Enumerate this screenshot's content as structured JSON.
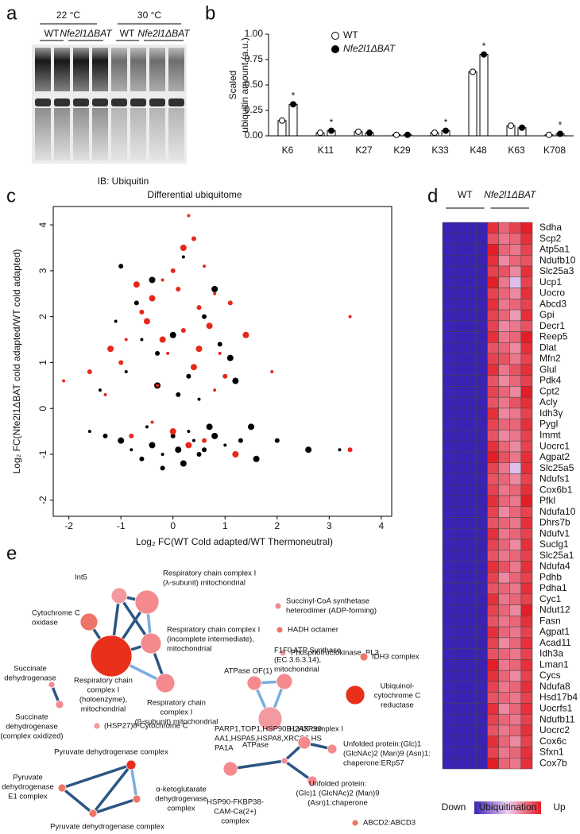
{
  "panel_labels": [
    "a",
    "b",
    "c",
    "d",
    "e"
  ],
  "blot": {
    "temperatures": [
      "22 °C",
      "30 °C"
    ],
    "groups": [
      "WT",
      "Nfe2l1ΔBAT",
      "WT",
      "Nfe2l1ΔBAT"
    ],
    "caption": "IB: Ubiquitin"
  },
  "chart_data": [
    {
      "type": "bar",
      "ylabel": [
        "Scaled",
        "ubiquitin amount (a.u.)"
      ],
      "categories": [
        "K6",
        "K11",
        "K27",
        "K29",
        "K33",
        "K48",
        "K63",
        "K708"
      ],
      "series": [
        {
          "name": "WT",
          "color": "#ffffff",
          "values": [
            0.15,
            0.03,
            0.04,
            0.01,
            0.03,
            0.63,
            0.1,
            0.01
          ]
        },
        {
          "name": "Nfe2l1ΔBAT",
          "color": "#000000",
          "values": [
            0.31,
            0.05,
            0.03,
            0.01,
            0.05,
            0.8,
            0.08,
            0.02
          ]
        }
      ],
      "significance": [
        "*",
        "*",
        null,
        null,
        "*",
        "*",
        null,
        "*"
      ],
      "ylim": [
        0,
        1.0
      ],
      "yticks": [
        {
          "value": 0,
          "label": "0.00"
        },
        {
          "value": 0.25,
          "label": "0.25"
        },
        {
          "value": 0.5,
          "label": "0.50"
        },
        {
          "value": 0.75,
          "label": "0.75"
        },
        {
          "value": 1,
          "label": "1.00"
        }
      ]
    },
    {
      "type": "scatter",
      "title": "Differential ubiquitome",
      "xlabel": "Log₂ FC(WT Cold adapted/WT Thermoneutral)",
      "ylabel": "Log₂ FC(Nfe2l1ΔBAT cold adapted/WT cold adapted)",
      "xlim": [
        -2.3,
        4.2
      ],
      "ylim": [
        -2.35,
        4.4
      ],
      "xticks": [
        -2,
        -1,
        0,
        1,
        2,
        3,
        4
      ],
      "yticks": [
        -2,
        -1,
        0,
        1,
        2,
        3,
        4
      ],
      "series": [
        {
          "color": "#000000",
          "x": [
            -1.6,
            -1.3,
            -1.0,
            -0.8,
            -0.6,
            -0.4,
            -0.2,
            0,
            0.2,
            0.4,
            0.6,
            0.8,
            1.0,
            1.3,
            1.6,
            -0.5,
            -0.2,
            0.1,
            0.3,
            0.5,
            0.7,
            -0.9,
            -0.3,
            0.0,
            0.4,
            0.9,
            1.2,
            -1.1,
            -0.7,
            -0.4,
            0.2,
            0.6,
            1.1,
            -1.4,
            0.1,
            -0.3,
            0.5,
            2.0,
            2.6,
            3.2,
            -1.0,
            0.8,
            -0.6,
            0.3,
            1.5
          ],
          "values": [
            -0.5,
            -0.6,
            -0.7,
            -0.9,
            -1.1,
            -0.8,
            -1.0,
            -0.6,
            -1.2,
            -0.7,
            -0.9,
            -0.6,
            -0.8,
            -0.7,
            -1.1,
            -0.4,
            -1.3,
            -0.9,
            -0.5,
            -1.0,
            -0.4,
            0.8,
            1.2,
            1.6,
            0.9,
            1.4,
            0.6,
            1.9,
            2.3,
            2.8,
            3.3,
            2.0,
            1.1,
            0.4,
            0.3,
            0.5,
            0.2,
            -0.7,
            -0.9,
            -0.9,
            3.1,
            2.6,
            1.5,
            0.7,
            -0.4
          ]
        },
        {
          "color": "#e8271b",
          "x": [
            -2.1,
            -1.6,
            -1.2,
            -0.9,
            -0.6,
            -0.4,
            -0.2,
            0.0,
            0.2,
            0.3,
            0.5,
            0.7,
            0.9,
            1.1,
            1.4,
            1.9,
            -1.0,
            -0.5,
            -0.1,
            0.1,
            0.4,
            0.6,
            1.0,
            -0.7,
            -0.3,
            0.2,
            0.5,
            0.8,
            -0.8,
            0.3,
            3.4,
            3.4,
            0.0,
            -0.4,
            0.6,
            1.2,
            -1.3,
            0.4,
            -0.2,
            0.8
          ],
          "values": [
            0.6,
            0.8,
            1.3,
            1.5,
            2.1,
            2.4,
            2.8,
            3.0,
            3.5,
            4.2,
            2.2,
            1.8,
            1.2,
            2.3,
            1.6,
            0.8,
            1.0,
            1.9,
            1.2,
            2.6,
            0.9,
            3.1,
            0.7,
            2.7,
            0.5,
            1.7,
            1.3,
            0.4,
            -0.6,
            -0.8,
            2.0,
            -0.9,
            -0.5,
            -0.3,
            -0.7,
            -1.0,
            0.3,
            3.7,
            1.5,
            2.5
          ]
        }
      ]
    },
    {
      "type": "heatmap",
      "column_groups": [
        "WT",
        "Nfe2l1ΔBAT"
      ],
      "rows": [
        "Sdha",
        "Scp2",
        "Atp5a1",
        "Ndufb10",
        "Slc25a3",
        "Ucp1",
        "Uocro",
        "Abcd3",
        "Gpi",
        "Decr1",
        "Reep5",
        "Dlat",
        "Mfn2",
        "Glul",
        "Pdk4",
        "Cpt2",
        "Acly",
        "Idh3γ",
        "Pygl",
        "Immt",
        "Uocrc1",
        "Agpat2",
        "Slc25a5",
        "Ndufs1",
        "Cox6b1",
        "Pfkl",
        "Ndufa10",
        "Dhrs7b",
        "Ndufv1",
        "Suclg1",
        "Slc25a1",
        "Ndufa4",
        "Pdhb",
        "Pdha1",
        "Cyc1",
        "Ndut12",
        "Fasn",
        "Agpat1",
        "Acad11",
        "Idh3a",
        "Lman1",
        "Cycs",
        "Ndufa8",
        "Hsd17b4",
        "Uocrfs1",
        "Ndufb11",
        "Uocrc2",
        "Cox6c",
        "Sfxn1",
        "Cox7b"
      ],
      "z": [
        [
          0,
          0,
          0,
          0,
          0.95,
          0.8,
          0.9,
          1
        ],
        [
          0,
          0,
          0,
          0,
          0.85,
          0.75,
          0.8,
          0.95
        ],
        [
          0,
          0,
          0,
          0,
          1,
          0.8,
          0.75,
          0.9
        ],
        [
          0,
          0,
          0,
          0,
          0.95,
          0.7,
          0.8,
          0.85
        ],
        [
          0,
          0,
          0,
          0,
          0.9,
          0.85,
          0.7,
          0.95
        ],
        [
          0,
          0,
          0,
          0,
          1,
          0.75,
          0.45,
          0.9
        ],
        [
          0,
          0,
          0,
          0,
          0.9,
          0.8,
          0.7,
          0.95
        ],
        [
          0,
          0,
          0,
          0,
          0.95,
          0.75,
          0.8,
          0.9
        ],
        [
          0,
          0,
          0,
          0,
          0.9,
          0.8,
          0.65,
          0.95
        ],
        [
          0,
          0,
          0,
          0,
          0.9,
          0.7,
          0.75,
          0.85
        ],
        [
          0,
          0,
          0,
          0,
          0.95,
          0.75,
          0.8,
          1
        ],
        [
          0,
          0,
          0,
          0,
          0.85,
          0.8,
          0.7,
          0.95
        ],
        [
          0,
          0,
          0,
          0,
          0.9,
          0.85,
          0.75,
          0.9
        ],
        [
          0,
          0,
          0,
          0,
          0.95,
          0.75,
          0.85,
          0.95
        ],
        [
          0,
          0,
          0,
          0,
          0.85,
          0.7,
          0.8,
          0.9
        ],
        [
          0,
          0,
          0,
          0,
          0.9,
          0.8,
          0.7,
          1
        ],
        [
          0,
          0,
          0,
          0,
          0.85,
          0.75,
          0.85,
          0.95
        ],
        [
          0,
          0,
          0,
          0,
          0.95,
          0.7,
          0.75,
          0.9
        ],
        [
          0,
          0,
          0,
          0,
          0.9,
          0.8,
          0.8,
          0.95
        ],
        [
          0,
          0,
          0,
          0,
          0.85,
          0.7,
          0.75,
          0.9
        ],
        [
          0,
          0,
          0,
          0,
          0.95,
          0.8,
          0.7,
          0.9
        ],
        [
          0,
          0,
          0,
          0,
          1,
          0.85,
          0.75,
          0.95
        ],
        [
          0,
          0,
          0,
          0,
          0.9,
          0.75,
          0.45,
          0.95
        ],
        [
          0,
          0,
          0,
          0,
          0.85,
          0.8,
          0.7,
          0.9
        ],
        [
          0,
          0,
          0,
          0,
          0.9,
          0.75,
          0.8,
          0.95
        ],
        [
          0,
          0,
          0,
          0,
          0.95,
          0.8,
          0.75,
          1
        ],
        [
          0,
          0,
          0,
          0,
          0.9,
          0.7,
          0.8,
          0.9
        ],
        [
          0,
          0,
          0,
          0,
          0.85,
          0.8,
          0.75,
          0.95
        ],
        [
          0,
          0,
          0,
          0,
          0.95,
          0.75,
          0.8,
          0.9
        ],
        [
          0,
          0,
          0,
          0,
          0.9,
          0.8,
          0.7,
          0.95
        ],
        [
          0,
          0,
          0,
          0,
          0.85,
          0.75,
          0.8,
          0.9
        ],
        [
          0,
          0,
          0,
          0,
          0.95,
          0.85,
          0.75,
          0.95
        ],
        [
          0,
          0,
          0,
          0,
          0.9,
          0.7,
          0.8,
          0.9
        ],
        [
          0,
          0,
          0,
          0,
          0.85,
          0.8,
          0.75,
          0.95
        ],
        [
          0,
          0,
          0,
          0,
          0.95,
          0.75,
          0.8,
          0.9
        ],
        [
          0,
          0,
          0,
          0,
          0.9,
          0.8,
          0.7,
          1
        ],
        [
          0,
          0,
          0,
          0,
          0.85,
          0.75,
          0.8,
          0.95
        ],
        [
          0,
          0,
          0,
          0,
          0.95,
          0.8,
          0.75,
          0.9
        ],
        [
          0,
          0,
          0,
          0,
          0.9,
          0.7,
          0.8,
          0.95
        ],
        [
          0,
          0,
          0,
          0,
          0.85,
          0.8,
          0.75,
          0.9
        ],
        [
          0,
          0,
          0,
          0,
          1,
          0.75,
          0.8,
          0.95
        ],
        [
          0,
          0,
          0,
          0,
          0.95,
          0.8,
          0.7,
          0.9
        ],
        [
          0,
          0,
          0,
          0,
          0.9,
          0.75,
          0.8,
          0.95
        ],
        [
          0,
          0,
          0,
          0,
          0.85,
          0.8,
          0.75,
          0.9
        ],
        [
          0,
          0,
          0,
          0,
          0.95,
          0.7,
          0.8,
          0.95
        ],
        [
          0,
          0,
          0,
          0,
          0.9,
          0.8,
          0.75,
          0.9
        ],
        [
          0,
          0,
          0,
          0,
          0.85,
          0.75,
          0.8,
          0.95
        ],
        [
          0,
          0,
          0,
          0,
          0.95,
          0.8,
          0.7,
          0.9
        ],
        [
          0,
          0,
          0,
          0,
          0.9,
          0.75,
          0.8,
          0.95
        ],
        [
          0,
          0,
          0,
          0,
          1,
          0.8,
          0.75,
          0.95
        ]
      ],
      "zlim": [
        0,
        1
      ],
      "colors": [
        "#3a22b4",
        "#f0d0f2",
        "#e41e26"
      ],
      "scale": {
        "low": "Down",
        "title": "Ubiquitination",
        "high": "Up"
      }
    }
  ],
  "network": {
    "nodes": [
      {
        "lines": [
          "Int5"
        ],
        "color": "#f29aa0"
      },
      {
        "lines": [
          "Respiratory chain complex I",
          "(λ-subunit) mitochondrial"
        ],
        "color": "#f48a8e"
      },
      {
        "lines": [
          "Cytochrome C",
          "oxidase"
        ],
        "color": "#f07468"
      },
      {
        "lines": [
          "Respiratory chain complex I",
          "(incomplete intermediate),",
          "mitochondrial"
        ],
        "color": "#f48a8e"
      },
      {
        "lines": [
          "Respiratory chain",
          "complex I",
          "(holoenzyme),",
          "mitochondrial"
        ],
        "color": "#e8301a"
      },
      {
        "lines": [
          "Respiratory chain",
          "complex I",
          "(β-subunit) mitochondrial"
        ],
        "color": "#f48a8e"
      },
      {
        "lines": [
          "Succinyl-CoA synthetase",
          "heterodimer (ADP-forming)"
        ],
        "color": "#f48a8e"
      },
      {
        "lines": [
          "HADH octamer"
        ],
        "color": "#f07468"
      },
      {
        "lines": [
          "Phosphofructokinase, PL3"
        ],
        "color": "#f29aa0"
      },
      {
        "lines": [
          "Succinate",
          "dehydrogenase"
        ],
        "color": "#f48a8e"
      },
      {
        "lines": [
          "Succinate",
          "dehydrogenase",
          "(complex oxidized)"
        ],
        "color": "#f48a8e"
      },
      {
        "lines": [
          "(HSP27)8-Cytochrome C"
        ],
        "color": "#f29aa0"
      },
      {
        "lines": [
          "ATPase OF(1)"
        ],
        "color": "#f48a8e"
      },
      {
        "lines": [
          "F1F0 ATP Synthase",
          "(EC 3.6.3.14),",
          "mitochondrial"
        ],
        "color": "#f48a8e"
      },
      {
        "lines": [
          "ATPase"
        ],
        "color": "#f29aa0"
      },
      {
        "lines": [
          "IDH3 complex"
        ],
        "color": "#f07468"
      },
      {
        "lines": [
          "Ubiquinol-",
          "cytochrome C",
          "reductase"
        ],
        "color": "#e8301a"
      },
      {
        "lines": [
          "Pyruvate dehydrogenase complex"
        ],
        "color": "#e8301a"
      },
      {
        "lines": [
          "Pyruvate",
          "dehydrogenase",
          "E1 complex"
        ],
        "color": "#f07468"
      },
      {
        "lines": [
          "α-ketoglutarate",
          "dehydrogenase",
          "complex"
        ],
        "color": "#f07468"
      },
      {
        "lines": [
          "Pyruvate dehydrogenase complex"
        ],
        "color": "#f07468"
      },
      {
        "lines": [
          "PARP1,TOP1,HSP90B1,HSP90",
          "AA1,HSPA5,HSPA8,XRCC6,HS",
          "PA1A"
        ],
        "color": "#f48a8e"
      },
      {
        "lines": [
          "HSP90-FKBP38-",
          "CAM-Ca(2+)",
          "complex"
        ],
        "color": "#f48a8e"
      },
      {
        "lines": [
          "H2AX complex I"
        ],
        "color": "#f48a8e"
      },
      {
        "lines": [
          "Unfolded protein:(Glc)1",
          "(GlcNAc)2 (Man)9 (Asn)1:",
          "chaperone:ERp57"
        ],
        "color": "#f48a8e"
      },
      {
        "lines": [
          "Unfolded protein:",
          "(Glc)1 (GlcNAc)2 (Man)9",
          "(Asn)1:chaperone"
        ],
        "color": "#f48a8e"
      },
      {
        "lines": [
          "ABCD2:ABCD3"
        ],
        "color": "#f07468"
      }
    ]
  }
}
